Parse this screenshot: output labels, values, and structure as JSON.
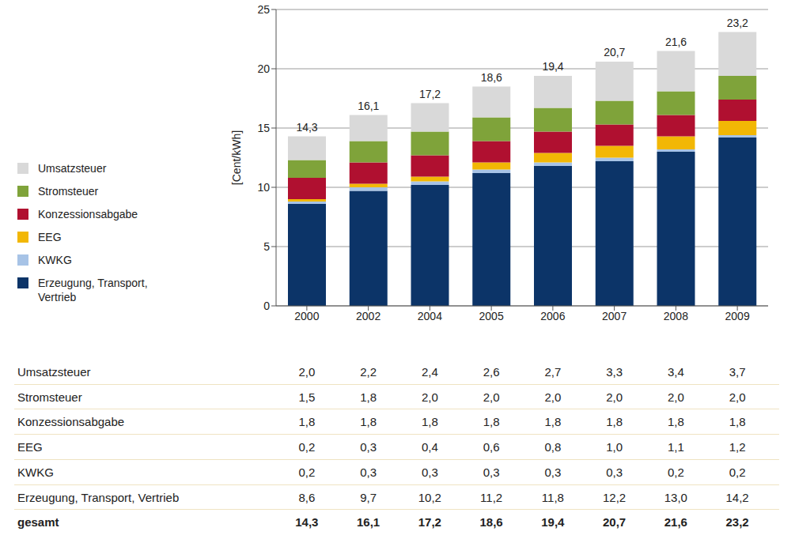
{
  "chart_data": {
    "type": "bar",
    "stacked": true,
    "grid": true,
    "legend": "left",
    "y_label": "[Cent/kWh]",
    "categories": [
      "2000",
      "2002",
      "2004",
      "2005",
      "2006",
      "2007",
      "2008",
      "2009"
    ],
    "ylim": [
      0,
      25
    ],
    "yticks": [
      0,
      5,
      10,
      15,
      20,
      25
    ],
    "series": [
      {
        "name": "Umsatzsteuer",
        "color": "#d9d9d9",
        "values": [
          2.0,
          2.2,
          2.4,
          2.6,
          2.7,
          3.3,
          3.4,
          3.7
        ],
        "value_labels": [
          "2,0",
          "2,2",
          "2,4",
          "2,6",
          "2,7",
          "3,3",
          "3,4",
          "3,7"
        ]
      },
      {
        "name": "Stromsteuer",
        "color": "#7fa33a",
        "values": [
          1.5,
          1.8,
          2.0,
          2.0,
          2.0,
          2.0,
          2.0,
          2.0
        ],
        "value_labels": [
          "1,5",
          "1,8",
          "2,0",
          "2,0",
          "2,0",
          "2,0",
          "2,0",
          "2,0"
        ]
      },
      {
        "name": "Konzessionsabgabe",
        "color": "#b01030",
        "values": [
          1.8,
          1.8,
          1.8,
          1.8,
          1.8,
          1.8,
          1.8,
          1.8
        ],
        "value_labels": [
          "1,8",
          "1,8",
          "1,8",
          "1,8",
          "1,8",
          "1,8",
          "1,8",
          "1,8"
        ]
      },
      {
        "name": "EEG",
        "color": "#f2b705",
        "values": [
          0.2,
          0.3,
          0.4,
          0.6,
          0.8,
          1.0,
          1.1,
          1.2
        ],
        "value_labels": [
          "0,2",
          "0,3",
          "0,4",
          "0,6",
          "0,8",
          "1,0",
          "1,1",
          "1,2"
        ]
      },
      {
        "name": "KWKG",
        "color": "#a7c3e6",
        "values": [
          0.2,
          0.3,
          0.3,
          0.3,
          0.3,
          0.3,
          0.2,
          0.2
        ],
        "value_labels": [
          "0,2",
          "0,3",
          "0,3",
          "0,3",
          "0,3",
          "0,3",
          "0,2",
          "0,2"
        ]
      },
      {
        "name": "Erzeugung, Transport, Vertrieb",
        "color": "#0c3468",
        "values": [
          8.6,
          9.7,
          10.2,
          11.2,
          11.8,
          12.2,
          13.0,
          14.2
        ],
        "value_labels": [
          "8,6",
          "9,7",
          "10,2",
          "11,2",
          "11,8",
          "12,2",
          "13,0",
          "14,2"
        ]
      }
    ],
    "totals": {
      "name": "gesamt",
      "values": [
        14.3,
        16.1,
        17.2,
        18.6,
        19.4,
        20.7,
        21.6,
        23.2
      ],
      "value_labels": [
        "14,3",
        "16,1",
        "17,2",
        "18,6",
        "19,4",
        "20,7",
        "21,6",
        "23,2"
      ]
    }
  }
}
